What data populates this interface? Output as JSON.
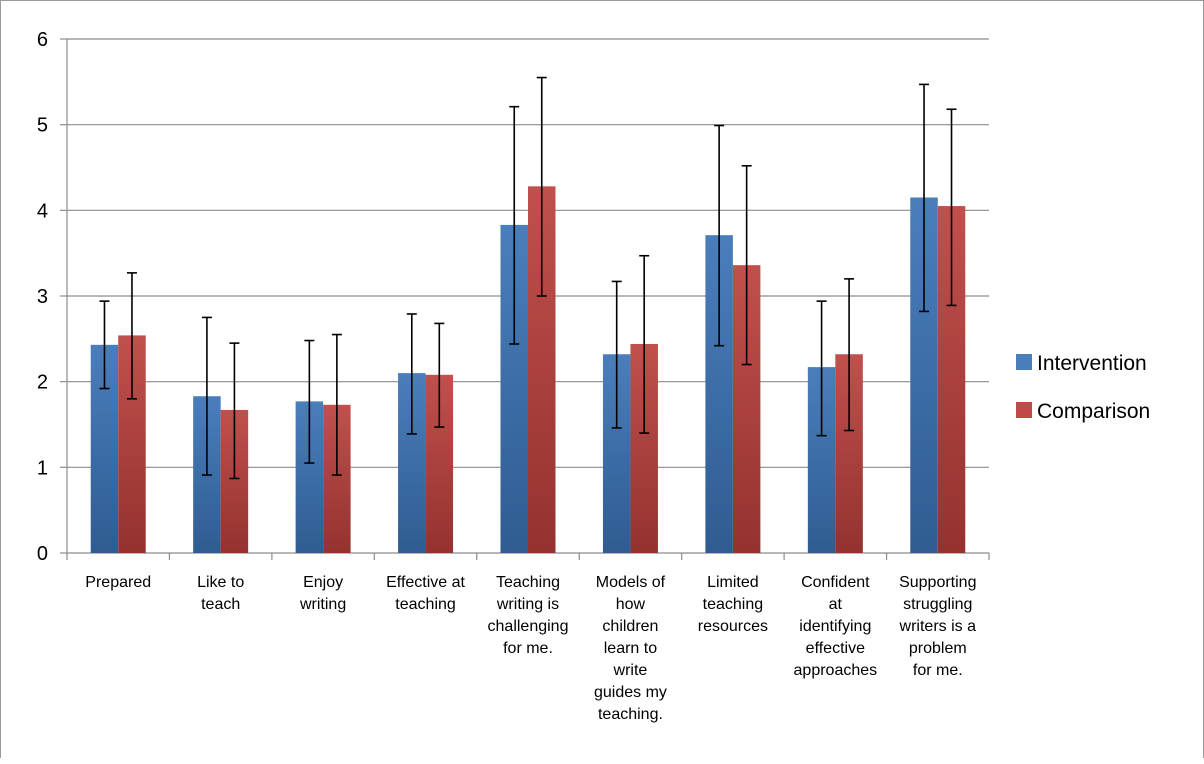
{
  "chart_data": {
    "type": "bar",
    "title": "",
    "xlabel": "",
    "ylabel": "",
    "ylim": [
      0,
      6
    ],
    "yticks": [
      0,
      1,
      2,
      3,
      4,
      5,
      6
    ],
    "grid": true,
    "legend_position": "right",
    "categories": [
      [
        "Prepared"
      ],
      [
        "Like to",
        "teach"
      ],
      [
        "Enjoy",
        "writing"
      ],
      [
        "Effective at",
        "teaching"
      ],
      [
        "Teaching",
        "writing is",
        "challenging",
        "for me."
      ],
      [
        "Models of",
        "how",
        "children",
        "learn to",
        "write",
        "guides my",
        "teaching."
      ],
      [
        "Limited",
        "teaching",
        "resources"
      ],
      [
        "Confident",
        "at",
        "identifying",
        "effective",
        "approaches"
      ],
      [
        "Supporting",
        "struggling",
        "writers is a",
        "problem",
        "for me."
      ]
    ],
    "series": [
      {
        "name": "Intervention",
        "color": "#4a7ebb",
        "values": [
          2.43,
          1.83,
          1.77,
          2.1,
          3.83,
          2.32,
          3.71,
          2.17,
          4.15
        ],
        "error_low": [
          1.92,
          0.91,
          1.05,
          1.39,
          2.44,
          1.46,
          2.42,
          1.37,
          2.82
        ],
        "error_high": [
          2.94,
          2.75,
          2.48,
          2.79,
          5.21,
          3.17,
          4.99,
          2.94,
          5.47
        ]
      },
      {
        "name": "Comparison",
        "color": "#be4b48",
        "values": [
          2.54,
          1.67,
          1.73,
          2.08,
          4.28,
          2.44,
          3.36,
          2.32,
          4.05
        ],
        "error_low": [
          1.8,
          0.87,
          0.91,
          1.47,
          3.0,
          1.4,
          2.2,
          1.43,
          2.89
        ],
        "error_high": [
          3.27,
          2.45,
          2.55,
          2.68,
          5.55,
          3.47,
          4.52,
          3.2,
          5.18
        ]
      }
    ]
  }
}
